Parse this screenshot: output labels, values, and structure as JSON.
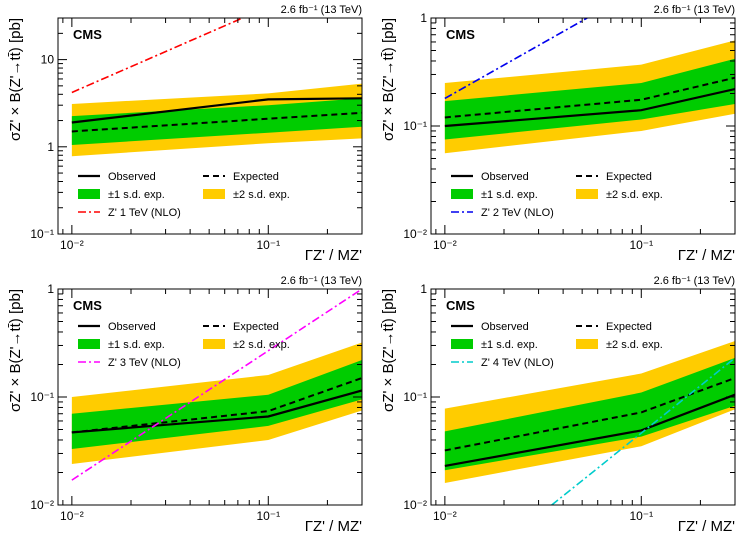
{
  "chart_data": [
    {
      "type": "line",
      "title": "CMS",
      "lumi": "2.6 fb⁻¹ (13 TeV)",
      "ylabel": "σZ' × B(Z'→tt̄) [pb]",
      "xlabel": "ΓZ' / MZ'",
      "xscale": "log",
      "yscale": "log",
      "xlim": [
        0.0085,
        0.3
      ],
      "ylim": [
        0.1,
        30
      ],
      "xticks": [
        {
          "v": 0.01,
          "label": "10⁻²"
        },
        {
          "v": 0.1,
          "label": "10⁻¹"
        }
      ],
      "yticks": [
        {
          "v": 0.1,
          "label": "10⁻¹"
        },
        {
          "v": 1,
          "label": "1"
        },
        {
          "v": 10,
          "label": "10"
        }
      ],
      "x": [
        0.01,
        0.1,
        0.3
      ],
      "observed": [
        1.9,
        3.5,
        3.6
      ],
      "expected": [
        1.5,
        2.1,
        2.45
      ],
      "band1": {
        "low": [
          1.05,
          1.45,
          1.7
        ],
        "high": [
          2.25,
          3.0,
          3.6
        ]
      },
      "band2": {
        "low": [
          0.78,
          1.1,
          1.25
        ],
        "high": [
          3.1,
          4.1,
          5.3
        ]
      },
      "theory": {
        "label": "Z' 1 TeV (NLO)",
        "color": "#ff0000",
        "x": [
          0.01,
          0.074
        ],
        "y": [
          4.2,
          30
        ]
      },
      "legend": {
        "observed": "Observed",
        "expected": "Expected",
        "band1": "±1 s.d. exp.",
        "band2": "±2 s.d. exp."
      },
      "legend_position": "lower-middle"
    },
    {
      "type": "line",
      "title": "CMS",
      "lumi": "2.6 fb⁻¹ (13 TeV)",
      "ylabel": "σZ' × B(Z'→tt̄) [pb]",
      "xlabel": "ΓZ' / MZ'",
      "xscale": "log",
      "yscale": "log",
      "xlim": [
        0.0085,
        0.3
      ],
      "ylim": [
        0.01,
        1
      ],
      "xticks": [
        {
          "v": 0.01,
          "label": "10⁻²"
        },
        {
          "v": 0.1,
          "label": "10⁻¹"
        }
      ],
      "yticks": [
        {
          "v": 0.01,
          "label": "10⁻²"
        },
        {
          "v": 0.1,
          "label": "10⁻¹"
        },
        {
          "v": 1,
          "label": "1"
        }
      ],
      "x": [
        0.01,
        0.1,
        0.3
      ],
      "observed": [
        0.1,
        0.14,
        0.22
      ],
      "expected": [
        0.12,
        0.175,
        0.28
      ],
      "band1": {
        "low": [
          0.075,
          0.115,
          0.16
        ],
        "high": [
          0.17,
          0.25,
          0.42
        ]
      },
      "band2": {
        "low": [
          0.056,
          0.09,
          0.13
        ],
        "high": [
          0.25,
          0.37,
          0.62
        ]
      },
      "theory": {
        "label": "Z' 2 TeV (NLO)",
        "color": "#0000ee",
        "x": [
          0.01,
          0.053
        ],
        "y": [
          0.18,
          1
        ]
      },
      "legend": {
        "observed": "Observed",
        "expected": "Expected",
        "band1": "±1 s.d. exp.",
        "band2": "±2 s.d. exp."
      },
      "legend_position": "lower-middle"
    },
    {
      "type": "line",
      "title": "CMS",
      "lumi": "2.6 fb⁻¹ (13 TeV)",
      "ylabel": "σZ' × B(Z'→tt̄) [pb]",
      "xlabel": "ΓZ' / MZ'",
      "xscale": "log",
      "yscale": "log",
      "xlim": [
        0.0085,
        0.3
      ],
      "ylim": [
        0.01,
        1
      ],
      "xticks": [
        {
          "v": 0.01,
          "label": "10⁻²"
        },
        {
          "v": 0.1,
          "label": "10⁻¹"
        }
      ],
      "yticks": [
        {
          "v": 0.01,
          "label": "10⁻²"
        },
        {
          "v": 0.1,
          "label": "10⁻¹"
        },
        {
          "v": 1,
          "label": "1"
        }
      ],
      "x": [
        0.01,
        0.1,
        0.3
      ],
      "observed": [
        0.047,
        0.066,
        0.115
      ],
      "expected": [
        0.047,
        0.074,
        0.15
      ],
      "band1": {
        "low": [
          0.033,
          0.054,
          0.095
        ],
        "high": [
          0.07,
          0.105,
          0.22
        ]
      },
      "band2": {
        "low": [
          0.024,
          0.04,
          0.075
        ],
        "high": [
          0.1,
          0.16,
          0.32
        ]
      },
      "theory": {
        "label": "Z' 3 TeV (NLO)",
        "color": "#ff00ff",
        "x": [
          0.01,
          0.3
        ],
        "y": [
          0.017,
          1
        ]
      },
      "legend": {
        "observed": "Observed",
        "expected": "Expected",
        "band1": "±1 s.d. exp.",
        "band2": "±2 s.d. exp."
      },
      "legend_position": "top-left"
    },
    {
      "type": "line",
      "title": "CMS",
      "lumi": "2.6 fb⁻¹ (13 TeV)",
      "ylabel": "σZ' × B(Z'→tt̄) [pb]",
      "xlabel": "ΓZ' / MZ'",
      "xscale": "log",
      "yscale": "log",
      "xlim": [
        0.0085,
        0.3
      ],
      "ylim": [
        0.01,
        1
      ],
      "xticks": [
        {
          "v": 0.01,
          "label": "10⁻²"
        },
        {
          "v": 0.1,
          "label": "10⁻¹"
        }
      ],
      "yticks": [
        {
          "v": 0.01,
          "label": "10⁻²"
        },
        {
          "v": 0.1,
          "label": "10⁻¹"
        },
        {
          "v": 1,
          "label": "1"
        }
      ],
      "x": [
        0.01,
        0.1,
        0.3
      ],
      "observed": [
        0.023,
        0.049,
        0.105
      ],
      "expected": [
        0.032,
        0.072,
        0.15
      ],
      "band1": {
        "low": [
          0.021,
          0.043,
          0.083
        ],
        "high": [
          0.048,
          0.11,
          0.23
        ]
      },
      "band2": {
        "low": [
          0.016,
          0.035,
          0.077
        ],
        "high": [
          0.078,
          0.165,
          0.33
        ]
      },
      "theory": {
        "label": "Z' 4 TeV (NLO)",
        "color": "#00cccc",
        "x": [
          0.035,
          0.3
        ],
        "y": [
          0.01,
          0.23
        ]
      },
      "legend": {
        "observed": "Observed",
        "expected": "Expected",
        "band1": "±1 s.d. exp.",
        "band2": "±2 s.d. exp."
      },
      "legend_position": "top-left"
    }
  ],
  "colors": {
    "band1": "#00cc00",
    "band2": "#ffcc00",
    "line": "#000000"
  }
}
